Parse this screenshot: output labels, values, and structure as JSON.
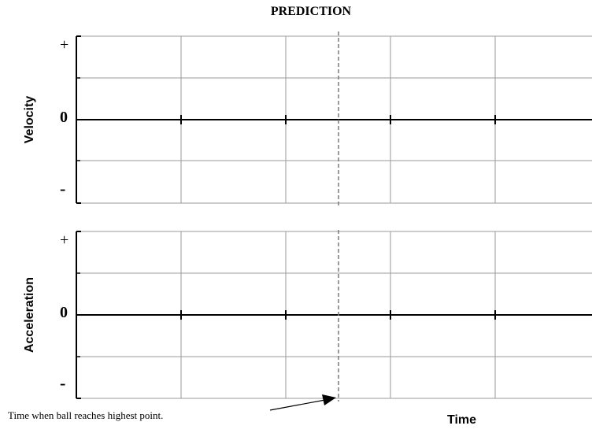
{
  "title": "PREDICTION",
  "panels": [
    {
      "axis_label": "Velocity",
      "plus_label": "+",
      "zero_label": "0",
      "minus_label": "-"
    },
    {
      "axis_label": "Acceleration",
      "plus_label": "+",
      "zero_label": "0",
      "minus_label": "-"
    }
  ],
  "time_label": "Time",
  "annotation": "Time when ball reaches highest point."
}
